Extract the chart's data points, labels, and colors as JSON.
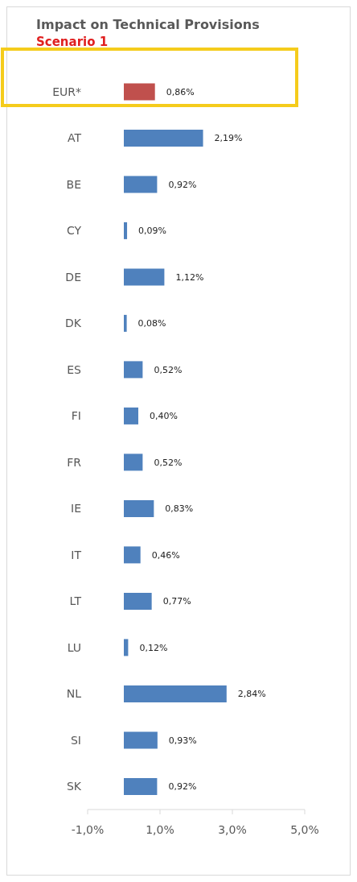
{
  "chart_data": {
    "type": "bar",
    "orientation": "horizontal",
    "title": "Impact on Technical Provisions",
    "subtitle": "Scenario 1",
    "categories": [
      "EUR*",
      "AT",
      "BE",
      "CY",
      "DE",
      "DK",
      "ES",
      "FI",
      "FR",
      "IE",
      "IT",
      "LT",
      "LU",
      "NL",
      "SI",
      "SK"
    ],
    "values": [
      0.86,
      2.19,
      0.92,
      0.09,
      1.12,
      0.08,
      0.52,
      0.4,
      0.52,
      0.83,
      0.46,
      0.77,
      0.12,
      2.84,
      0.93,
      0.92
    ],
    "colors": [
      "#c0504d",
      "#4f81bd",
      "#4f81bd",
      "#4f81bd",
      "#4f81bd",
      "#4f81bd",
      "#4f81bd",
      "#4f81bd",
      "#4f81bd",
      "#4f81bd",
      "#4f81bd",
      "#4f81bd",
      "#4f81bd",
      "#4f81bd",
      "#4f81bd",
      "#4f81bd"
    ],
    "value_labels": [
      "0,86%",
      "2,19%",
      "0,92%",
      "0,09%",
      "1,12%",
      "0,08%",
      "0,52%",
      "0,40%",
      "0,52%",
      "0,83%",
      "0,46%",
      "0,77%",
      "0,12%",
      "2,84%",
      "0,93%",
      "0,92%"
    ],
    "xlim": [
      -1,
      5
    ],
    "xticks": [
      {
        "value": -1,
        "label": "-1,0%"
      },
      {
        "value": 1,
        "label": "1,0%"
      },
      {
        "value": 3,
        "label": "3,0%"
      },
      {
        "value": 5,
        "label": "5,0%"
      }
    ],
    "grid": false
  }
}
